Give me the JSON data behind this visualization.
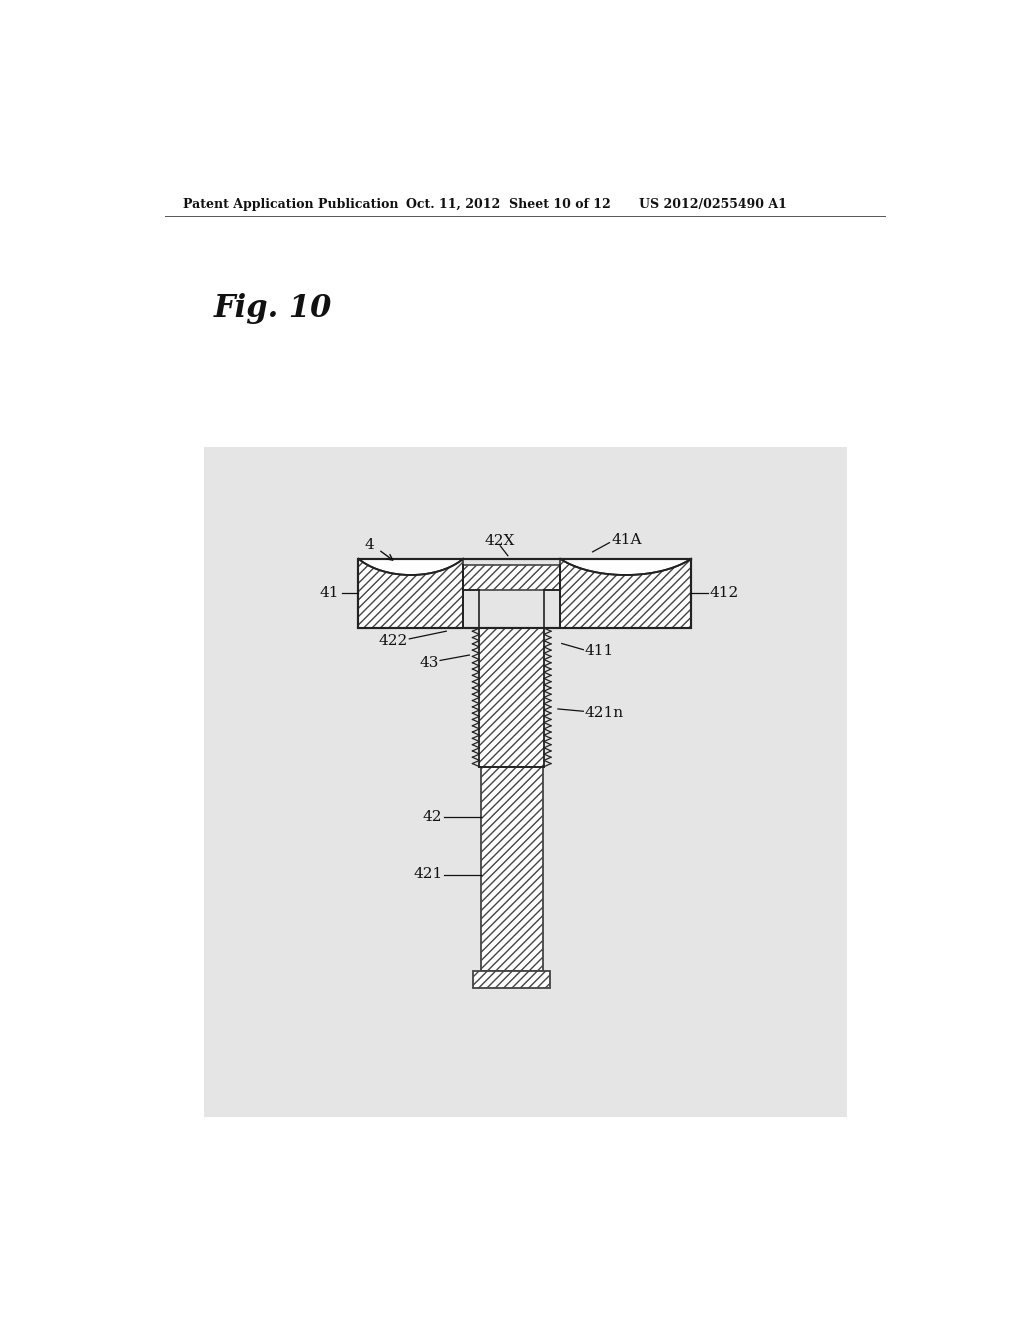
{
  "title": "Fig. 10",
  "header_left": "Patent Application Publication",
  "header_mid": "Oct. 11, 2012  Sheet 10 of 12",
  "header_right": "US 2012/0255490 A1",
  "bg_color": "#ffffff",
  "diagram_bg": "#e5e5e5",
  "hatch_color": "#444444",
  "hatch_pattern": "////",
  "label_4": "4",
  "label_41A": "41A",
  "label_42X": "42X",
  "label_41": "41",
  "label_412": "412",
  "label_422": "422",
  "label_43": "43",
  "label_411": "411",
  "label_421n": "421n",
  "label_42": "42",
  "label_421": "421",
  "line_color": "#222222",
  "text_color": "#111111"
}
